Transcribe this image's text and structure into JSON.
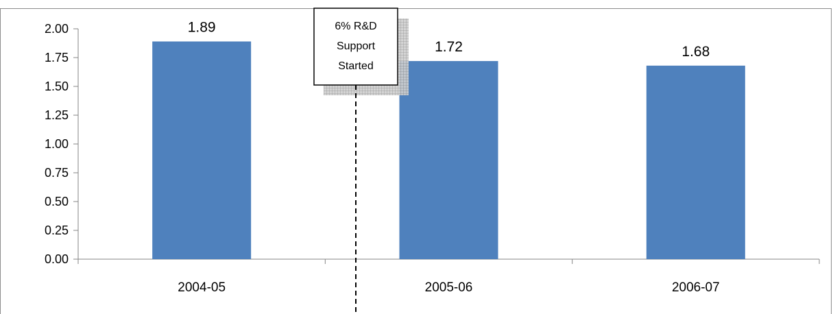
{
  "chart_data": {
    "type": "bar",
    "categories": [
      "2004-05",
      "2005-06",
      "2006-07"
    ],
    "values": [
      1.89,
      1.72,
      1.68
    ],
    "data_labels": [
      "1.89",
      "1.72",
      "1.68"
    ],
    "ylim": [
      0,
      2.0
    ],
    "yticks": [
      "0.00",
      "0.25",
      "0.50",
      "0.75",
      "1.00",
      "1.25",
      "1.50",
      "1.75",
      "2.00"
    ],
    "grid": false,
    "legend": "none",
    "annotation": {
      "lines": [
        "6% R&D",
        "Support",
        "Started"
      ],
      "position": "between 2004-05 and 2005-06"
    },
    "colors": {
      "bar": "#4F81BD",
      "axis": "#868686",
      "border": "#8c8c8c"
    }
  }
}
